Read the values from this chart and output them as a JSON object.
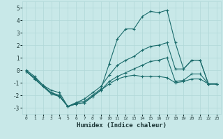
{
  "title": "",
  "xlabel": "Humidex (Indice chaleur)",
  "ylabel": "",
  "bg_color": "#c8e8e8",
  "grid_color": "#b0d8d8",
  "line_color": "#1a6b6b",
  "xlim": [
    -0.5,
    23.5
  ],
  "ylim": [
    -3.5,
    5.5
  ],
  "yticks": [
    -3,
    -2,
    -1,
    0,
    1,
    2,
    3,
    4,
    5
  ],
  "xticks": [
    0,
    1,
    2,
    3,
    4,
    5,
    6,
    7,
    8,
    9,
    10,
    11,
    12,
    13,
    14,
    15,
    16,
    17,
    18,
    19,
    20,
    21,
    22,
    23
  ],
  "series": [
    [
      0.0,
      -0.5,
      -1.2,
      -1.8,
      -2.0,
      -2.9,
      -2.6,
      -2.5,
      -2.0,
      -1.5,
      0.5,
      2.5,
      3.3,
      3.3,
      4.3,
      4.7,
      4.6,
      4.8,
      2.2,
      0.1,
      0.8,
      0.8,
      -1.1,
      -1.1
    ],
    [
      -0.1,
      -0.6,
      -1.2,
      -1.6,
      -1.8,
      -2.9,
      -2.6,
      -2.3,
      -1.8,
      -1.3,
      -0.4,
      0.4,
      0.8,
      1.1,
      1.6,
      1.9,
      2.0,
      2.2,
      0.1,
      0.1,
      0.8,
      0.8,
      -1.1,
      -1.1
    ],
    [
      -0.1,
      -0.7,
      -1.3,
      -1.8,
      -2.1,
      -2.9,
      -2.7,
      -2.6,
      -2.1,
      -1.6,
      -0.9,
      -0.5,
      -0.2,
      0.1,
      0.4,
      0.7,
      0.8,
      1.0,
      -0.9,
      -0.8,
      -0.3,
      -0.3,
      -1.1,
      -1.1
    ],
    [
      -0.1,
      -0.7,
      -1.3,
      -1.9,
      -2.1,
      -2.9,
      -2.7,
      -2.6,
      -2.1,
      -1.6,
      -1.1,
      -0.7,
      -0.5,
      -0.4,
      -0.5,
      -0.5,
      -0.5,
      -0.6,
      -1.0,
      -0.9,
      -0.7,
      -0.7,
      -1.1,
      -1.1
    ]
  ]
}
